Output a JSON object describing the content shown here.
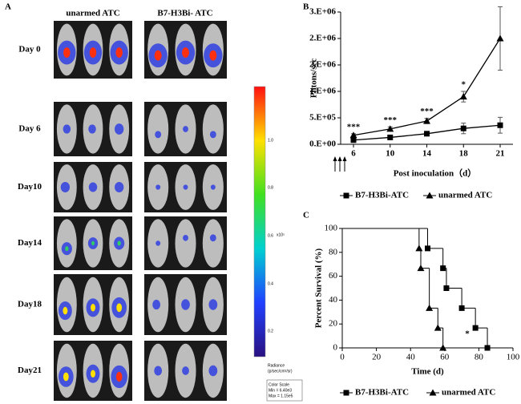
{
  "panel_a": {
    "label": "A",
    "columns": [
      "unarmed ATC",
      "B7-H3Bi- ATC"
    ],
    "rows": [
      "Day 0",
      "Day 6",
      "Day10",
      "Day14",
      "Day18",
      "Day21"
    ],
    "colorbar": {
      "ticks": [
        "1.0",
        "0.8",
        "0.6",
        "0.4",
        "0.2"
      ],
      "exponent": "x10⁵",
      "title": "Radiance",
      "unit": "(p/sec/cm²/sr)",
      "scale": "Color Scale",
      "min": "Min = 6.40e3",
      "max": "Max = 1.15e5"
    }
  },
  "chart_data": [
    {
      "type": "line",
      "label": "B",
      "ylabel": "Phtons/sec",
      "xlabel": "Post inoculation（d）",
      "categories": [
        "6",
        "10",
        "14",
        "18",
        "21"
      ],
      "ylim": [
        0,
        2500000
      ],
      "yticks": [
        {
          "value": 0,
          "label": "0.E+00"
        },
        {
          "value": 500000,
          "label": "5.E+05"
        },
        {
          "value": 1000000,
          "label": "1.E+06"
        },
        {
          "value": 1500000,
          "label": "2.E+06"
        },
        {
          "value": 2000000,
          "label": "2.E+06"
        },
        {
          "value": 2500000,
          "label": "3.E+06"
        }
      ],
      "series": [
        {
          "name": "B7-H3Bi-ATC",
          "marker": "square",
          "color": "#000000",
          "values": [
            80000,
            130000,
            200000,
            300000,
            360000
          ],
          "errors": [
            20000,
            20000,
            30000,
            100000,
            150000
          ]
        },
        {
          "name": "unarmed ATC",
          "marker": "triangle",
          "color": "#000000",
          "values": [
            170000,
            290000,
            440000,
            900000,
            2000000
          ],
          "errors": [
            30000,
            40000,
            50000,
            100000,
            600000
          ]
        }
      ],
      "significance": [
        "***",
        "***",
        "***",
        "*",
        "**"
      ]
    },
    {
      "type": "step",
      "label": "C",
      "ylabel": "Percent Survival (%)",
      "xlabel": "Time (d)",
      "xlim": [
        0,
        100
      ],
      "xticks": [
        0,
        20,
        40,
        60,
        80,
        100
      ],
      "ylim": [
        0,
        100
      ],
      "yticks": [
        0,
        20,
        40,
        60,
        80,
        100
      ],
      "series": [
        {
          "name": "B7-H3Bi-ATC",
          "marker": "square",
          "color": "#000000",
          "x": [
            0,
            50,
            59,
            61,
            70,
            78,
            85
          ],
          "values": [
            100,
            83.3,
            66.7,
            50,
            33.3,
            16.7,
            0
          ]
        },
        {
          "name": "unarmed ATC",
          "marker": "triangle",
          "color": "#000000",
          "x": [
            0,
            45,
            46,
            51,
            56,
            59
          ],
          "values": [
            100,
            83.3,
            66.7,
            33.3,
            16.7,
            0
          ]
        }
      ],
      "annotation": "*"
    }
  ]
}
